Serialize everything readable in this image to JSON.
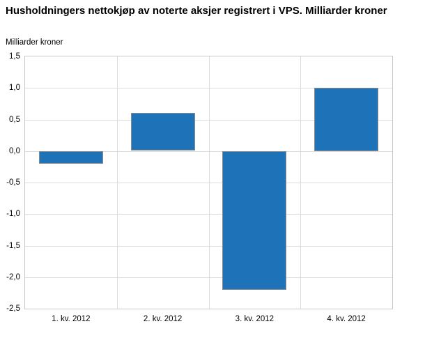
{
  "chart_data": {
    "type": "bar",
    "title": "Husholdningers nettokjøp av noterte aksjer registrert i VPS. Milliarder kroner",
    "ylabel": "Milliarder kroner",
    "xlabel": "",
    "categories": [
      "1. kv. 2012",
      "2. kv. 2012",
      "3. kv. 2012",
      "4. kv. 2012"
    ],
    "values": [
      -0.2,
      0.6,
      -2.2,
      1.0
    ],
    "ylim": [
      -2.5,
      1.5
    ],
    "ytick_step": 0.5,
    "ytick_labels": [
      "1,5",
      "1,0",
      "0,5",
      "0,0",
      "-0,5",
      "-1,0",
      "-1,5",
      "-2,0",
      "-2,5"
    ],
    "grid": true,
    "legend": "none",
    "colors": {
      "bar_fill": "#1d72b8",
      "bar_border": "#8c8c8c",
      "gridline": "#dcdcdc",
      "plot_border": "#c8c8c8",
      "background": "#ffffff",
      "text": "#000000"
    }
  }
}
